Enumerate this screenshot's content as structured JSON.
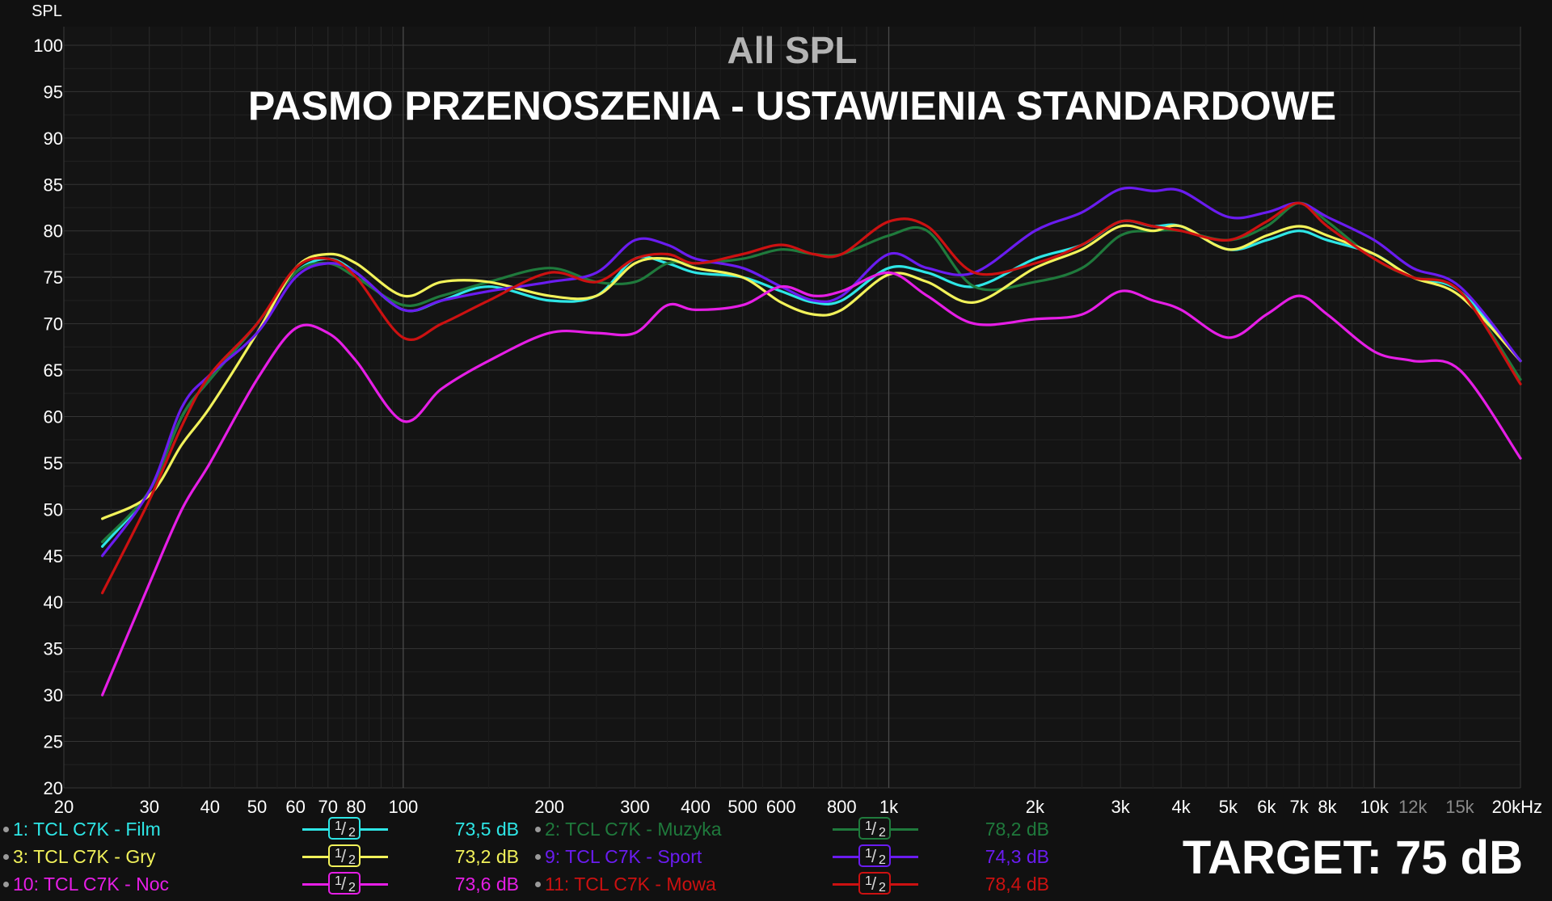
{
  "chart_data": {
    "type": "line",
    "title": "All SPL",
    "subtitle": "PASMO PRZENOSZENIA - USTAWIENIA STANDARDOWE",
    "ylabel": "SPL",
    "xscale": "log",
    "xlim": [
      20,
      20000
    ],
    "ylim": [
      20,
      102
    ],
    "grid": true,
    "y_ticks": [
      100,
      95,
      90,
      85,
      80,
      75,
      70,
      65,
      60,
      55,
      50,
      45,
      40,
      35,
      30,
      25,
      20
    ],
    "x_ticks": [
      {
        "v": 20,
        "label": "20"
      },
      {
        "v": 30,
        "label": "30"
      },
      {
        "v": 40,
        "label": "40"
      },
      {
        "v": 50,
        "label": "50"
      },
      {
        "v": 60,
        "label": "60"
      },
      {
        "v": 70,
        "label": "70"
      },
      {
        "v": 80,
        "label": "80"
      },
      {
        "v": 100,
        "label": "100"
      },
      {
        "v": 200,
        "label": "200"
      },
      {
        "v": 300,
        "label": "300"
      },
      {
        "v": 400,
        "label": "400"
      },
      {
        "v": 500,
        "label": "500"
      },
      {
        "v": 600,
        "label": "600"
      },
      {
        "v": 800,
        "label": "800"
      },
      {
        "v": 1000,
        "label": "1k"
      },
      {
        "v": 2000,
        "label": "2k"
      },
      {
        "v": 3000,
        "label": "3k"
      },
      {
        "v": 4000,
        "label": "4k"
      },
      {
        "v": 5000,
        "label": "5k"
      },
      {
        "v": 6000,
        "label": "6k"
      },
      {
        "v": 7000,
        "label": "7k"
      },
      {
        "v": 8000,
        "label": "8k"
      },
      {
        "v": 10000,
        "label": "10k"
      },
      {
        "v": 12000,
        "label": "12k"
      },
      {
        "v": 15000,
        "label": "15k"
      },
      {
        "v": 20000,
        "label": "20kHz"
      }
    ],
    "series": [
      {
        "name": "1: TCL C7K - Film",
        "color": "#2ee6e6",
        "smoothing": "1/2",
        "value_label": "73,5 dB",
        "x": [
          24,
          30,
          35,
          40,
          50,
          60,
          70,
          80,
          100,
          120,
          150,
          200,
          250,
          300,
          350,
          400,
          500,
          600,
          700,
          800,
          1000,
          1200,
          1500,
          2000,
          2500,
          3000,
          3500,
          4000,
          5000,
          6000,
          7000,
          8000,
          10000,
          12000,
          15000,
          20000
        ],
        "y": [
          46,
          52,
          60,
          64,
          70,
          75.5,
          77,
          75.5,
          71.5,
          72.5,
          74,
          72.5,
          73,
          77,
          76.5,
          75.5,
          75,
          73.5,
          72.3,
          72.5,
          76,
          75.5,
          74,
          77,
          78.5,
          81,
          80.5,
          80.5,
          78,
          79,
          80,
          79,
          77.5,
          75,
          73.5,
          66
        ]
      },
      {
        "name": "2: TCL C7K - Muzyka",
        "color": "#1f7a3c",
        "smoothing": "1/2",
        "value_label": "78,2 dB",
        "x": [
          24,
          30,
          35,
          40,
          50,
          60,
          70,
          80,
          100,
          120,
          150,
          200,
          250,
          300,
          350,
          400,
          500,
          600,
          700,
          800,
          1000,
          1200,
          1500,
          2000,
          2500,
          3000,
          3500,
          4000,
          5000,
          6000,
          7000,
          8000,
          10000,
          12000,
          15000,
          20000
        ],
        "y": [
          46.5,
          52,
          60,
          64,
          70,
          75.5,
          76.5,
          75,
          72,
          73,
          74.5,
          76,
          74.5,
          74.5,
          76.5,
          76.5,
          77,
          78,
          77.5,
          77.5,
          79.5,
          80,
          74,
          74.5,
          76,
          79.5,
          80,
          80,
          79,
          80.5,
          83,
          81,
          77,
          75,
          73.5,
          64
        ]
      },
      {
        "name": "3: TCL C7K - Gry",
        "color": "#f2f25a",
        "smoothing": "1/2",
        "value_label": "73,2 dB",
        "x": [
          24,
          30,
          35,
          40,
          50,
          60,
          70,
          80,
          100,
          120,
          150,
          200,
          250,
          300,
          350,
          400,
          500,
          600,
          700,
          800,
          1000,
          1200,
          1500,
          2000,
          2500,
          3000,
          3500,
          4000,
          5000,
          6000,
          7000,
          8000,
          10000,
          12000,
          15000,
          20000
        ],
        "y": [
          49,
          51.5,
          57,
          61,
          69,
          76,
          77.5,
          76.5,
          73,
          74.5,
          74.5,
          73,
          73,
          76.5,
          77,
          76,
          75,
          72.3,
          71,
          71.5,
          75.3,
          74.5,
          72.3,
          76,
          78,
          80.5,
          80,
          80.5,
          78,
          79.5,
          80.5,
          79.5,
          77.5,
          75,
          73,
          66
        ]
      },
      {
        "name": "9: TCL C7K - Sport",
        "color": "#6a1cf0",
        "smoothing": "1/2",
        "value_label": "74,3 dB",
        "x": [
          24,
          30,
          35,
          40,
          50,
          60,
          70,
          80,
          100,
          120,
          150,
          200,
          250,
          300,
          350,
          400,
          500,
          600,
          700,
          800,
          1000,
          1200,
          1500,
          2000,
          2500,
          3000,
          3500,
          4000,
          5000,
          6000,
          7000,
          8000,
          10000,
          12000,
          15000,
          20000
        ],
        "y": [
          45,
          52,
          61,
          64.5,
          69,
          75,
          76.5,
          75.5,
          71.5,
          72.5,
          73.5,
          74.5,
          75.5,
          79,
          78.5,
          77,
          76,
          74,
          72.5,
          73,
          77.5,
          76,
          75.5,
          80,
          82,
          84.5,
          84.3,
          84.3,
          81.5,
          82,
          83,
          81.5,
          79,
          76,
          74,
          66
        ]
      },
      {
        "name": "10: TCL C7K - Noc",
        "color": "#e61ee6",
        "smoothing": "1/2",
        "value_label": "73,6 dB",
        "x": [
          24,
          30,
          35,
          40,
          50,
          60,
          70,
          80,
          100,
          120,
          150,
          200,
          250,
          300,
          350,
          400,
          500,
          600,
          700,
          800,
          1000,
          1200,
          1500,
          2000,
          2500,
          3000,
          3500,
          4000,
          5000,
          6000,
          7000,
          8000,
          10000,
          12000,
          15000,
          20000
        ],
        "y": [
          30,
          42,
          50,
          55,
          64,
          69.5,
          69,
          66,
          59.5,
          63,
          66,
          69,
          69,
          69,
          72,
          71.5,
          72,
          74,
          73,
          73.5,
          75.5,
          73,
          70,
          70.5,
          71,
          73.5,
          72.5,
          71.5,
          68.5,
          71,
          73,
          71,
          67,
          66,
          65,
          55.5
        ]
      },
      {
        "name": "11: TCL C7K - Mowa",
        "color": "#cc1111",
        "smoothing": "1/2",
        "value_label": "78,4 dB",
        "x": [
          24,
          30,
          35,
          40,
          50,
          60,
          70,
          80,
          100,
          120,
          150,
          200,
          250,
          300,
          350,
          400,
          500,
          600,
          700,
          800,
          1000,
          1200,
          1500,
          2000,
          2500,
          3000,
          3500,
          4000,
          5000,
          6000,
          7000,
          8000,
          10000,
          12000,
          15000,
          20000
        ],
        "y": [
          41,
          51,
          59,
          64.5,
          70,
          76,
          77,
          75,
          68.5,
          70,
          72.5,
          75.5,
          74.5,
          77,
          77.5,
          76.5,
          77.5,
          78.5,
          77.5,
          77.5,
          81,
          80.5,
          75.5,
          76.5,
          78.5,
          81,
          80.5,
          80,
          79,
          81,
          83,
          80.5,
          77,
          75,
          73.5,
          63.5
        ]
      }
    ]
  },
  "target_label": "TARGET: 75 dB"
}
